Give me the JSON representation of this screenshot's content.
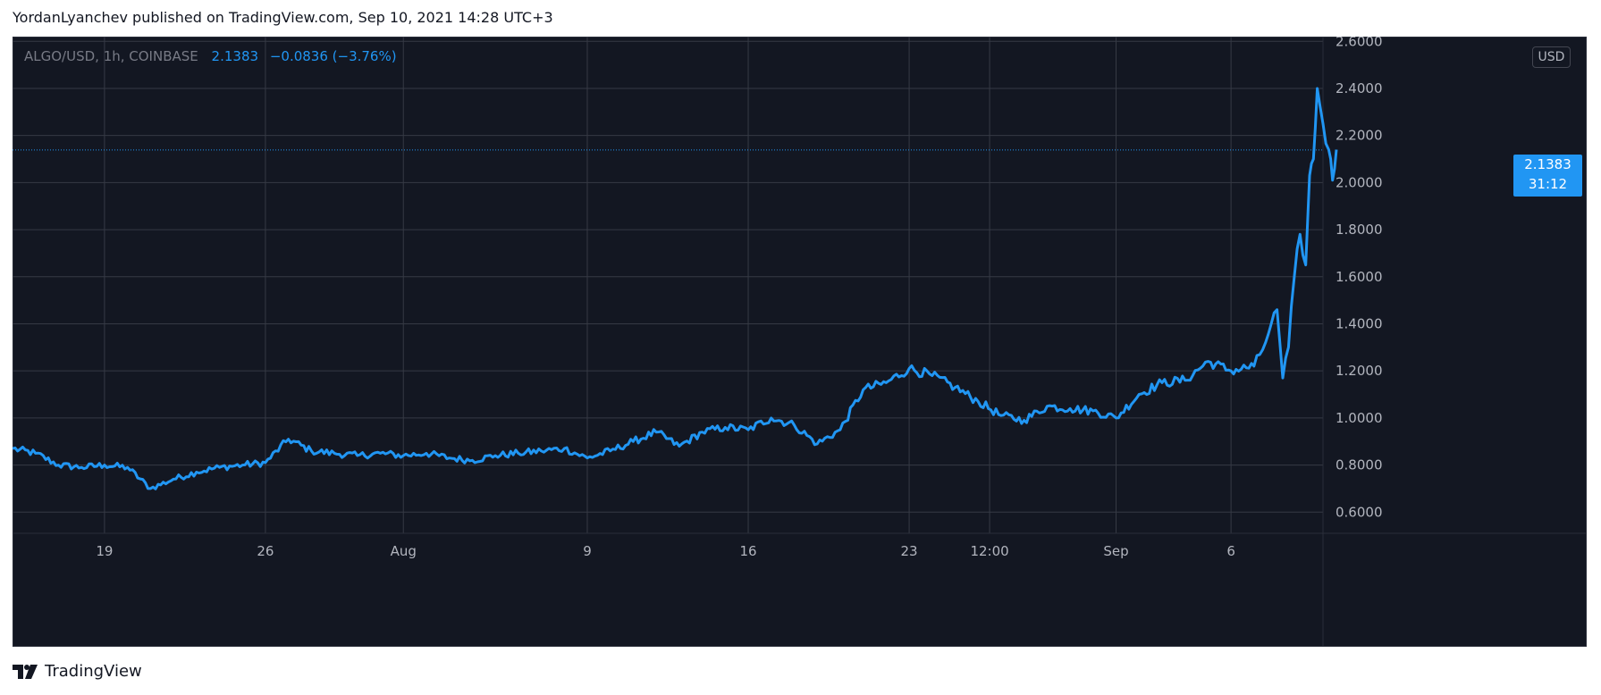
{
  "header": {
    "publisher_line": "YordanLyanchev published on TradingView.com, Sep 10, 2021 14:28 UTC+3"
  },
  "legend": {
    "symbol": "ALGO/USD, 1h, COINBASE",
    "price": "2.1383",
    "change": "−0.0836 (−3.76%)"
  },
  "price_axis": {
    "unit": "USD",
    "ticks": [
      "2.6000",
      "2.4000",
      "2.2000",
      "2.0000",
      "1.8000",
      "1.6000",
      "1.4000",
      "1.2000",
      "1.0000",
      "0.8000",
      "0.6000"
    ]
  },
  "current_price_label": {
    "price": "2.1383",
    "countdown": "31:12"
  },
  "time_axis": {
    "ticks": [
      "19",
      "26",
      "Aug",
      "9",
      "16",
      "23",
      "12:00",
      "Sep",
      "6"
    ]
  },
  "footer": {
    "brand": "TradingView"
  },
  "colors": {
    "background": "#131722",
    "line": "#2196f3",
    "grid": "#363a45",
    "axis_text": "#b2b5be",
    "legend_text": "#787b86"
  },
  "chart_data": {
    "type": "line",
    "title": "ALGO/USD, 1h, COINBASE",
    "xlabel": "",
    "ylabel": "",
    "ylim": [
      0.51,
      2.62
    ],
    "grid": true,
    "x_start": "2021-07-15",
    "x_end": "2021-09-10",
    "series": [
      {
        "name": "ALGO/USD",
        "x": [
          "2021-07-15",
          "2021-07-16",
          "2021-07-17",
          "2021-07-18",
          "2021-07-19",
          "2021-07-20",
          "2021-07-21",
          "2021-07-22",
          "2021-07-23",
          "2021-07-24",
          "2021-07-25",
          "2021-07-26",
          "2021-07-27",
          "2021-07-28",
          "2021-07-29",
          "2021-07-30",
          "2021-07-31",
          "2021-08-01",
          "2021-08-02",
          "2021-08-03",
          "2021-08-04",
          "2021-08-05",
          "2021-08-06",
          "2021-08-07",
          "2021-08-08",
          "2021-08-09",
          "2021-08-10",
          "2021-08-11",
          "2021-08-12",
          "2021-08-13",
          "2021-08-14",
          "2021-08-15",
          "2021-08-16",
          "2021-08-17",
          "2021-08-18",
          "2021-08-19",
          "2021-08-20",
          "2021-08-21",
          "2021-08-22",
          "2021-08-23",
          "2021-08-24",
          "2021-08-25",
          "2021-08-26",
          "2021-08-27",
          "2021-08-28",
          "2021-08-29",
          "2021-08-30",
          "2021-08-31",
          "2021-09-01",
          "2021-09-02",
          "2021-09-03",
          "2021-09-04",
          "2021-09-05",
          "2021-09-06",
          "2021-09-07",
          "2021-09-07 12:00",
          "2021-09-07 18:00",
          "2021-09-08",
          "2021-09-08 06:00",
          "2021-09-08 12:00",
          "2021-09-08 18:00",
          "2021-09-09",
          "2021-09-09 06:00",
          "2021-09-09 10:00",
          "2021-09-09 14:00",
          "2021-09-09 18:00",
          "2021-09-10",
          "2021-09-10 06:00",
          "2021-09-10 10:00",
          "2021-09-10 14:00"
        ],
        "values": [
          0.87,
          0.85,
          0.8,
          0.79,
          0.8,
          0.79,
          0.7,
          0.74,
          0.77,
          0.79,
          0.8,
          0.81,
          0.91,
          0.86,
          0.85,
          0.84,
          0.85,
          0.84,
          0.85,
          0.83,
          0.82,
          0.84,
          0.85,
          0.86,
          0.87,
          0.83,
          0.86,
          0.9,
          0.94,
          0.88,
          0.94,
          0.96,
          0.95,
          1.0,
          0.97,
          0.89,
          0.95,
          1.12,
          1.15,
          1.21,
          1.18,
          1.13,
          1.07,
          1.01,
          0.99,
          1.05,
          1.04,
          1.03,
          1.0,
          1.1,
          1.15,
          1.16,
          1.24,
          1.2,
          1.22,
          1.32,
          1.4,
          1.46,
          1.17,
          1.3,
          1.6,
          1.78,
          1.65,
          2.03,
          2.1,
          2.4,
          2.25,
          2.14,
          2.01,
          2.14
        ]
      }
    ]
  }
}
